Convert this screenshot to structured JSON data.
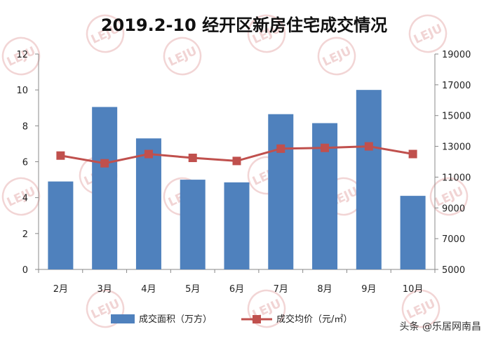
{
  "chart_data": {
    "type": "bar+line",
    "title": "2019.2-10 经开区新房住宅成交情况",
    "categories": [
      "2月",
      "3月",
      "4月",
      "5月",
      "6月",
      "7月",
      "8月",
      "9月",
      "10月"
    ],
    "series": [
      {
        "name": "成交面积（万方）",
        "type": "bar",
        "axis": "left",
        "color": "#4f81bd",
        "values": [
          4.9,
          9.05,
          7.3,
          5.0,
          4.85,
          8.65,
          8.15,
          10.0,
          4.1
        ]
      },
      {
        "name": "成交均价（元/㎡）",
        "type": "line",
        "axis": "right",
        "color": "#c0504d",
        "values": [
          12400,
          11900,
          12500,
          12250,
          12050,
          12850,
          12900,
          13000,
          12500
        ]
      }
    ],
    "y_left": {
      "min": 0,
      "max": 12,
      "ticks": [
        0,
        2,
        4,
        6,
        8,
        10,
        12
      ]
    },
    "y_right": {
      "min": 5000,
      "max": 19000,
      "ticks": [
        5000,
        7000,
        9000,
        11000,
        13000,
        15000,
        17000,
        19000
      ]
    },
    "legend_position": "bottom",
    "grid": false
  },
  "watermark": {
    "logo": "LEJU",
    "sub": "乐居"
  },
  "credit": "头条 @乐居网南昌"
}
